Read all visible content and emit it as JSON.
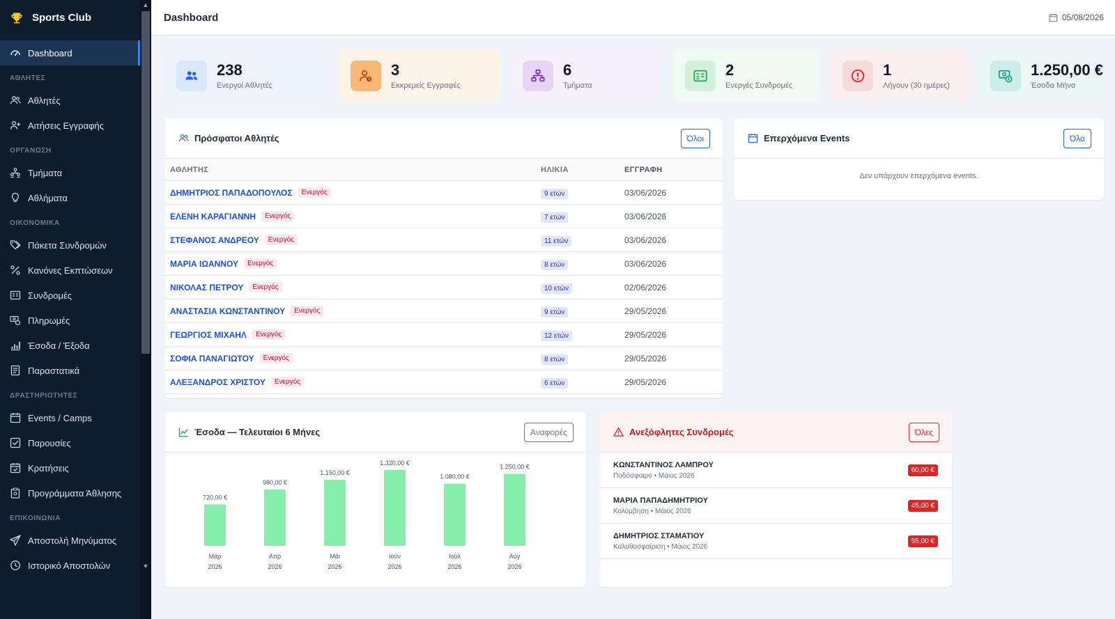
{
  "brand": {
    "name": "Sports Club",
    "icon": "trophy-icon"
  },
  "nav": {
    "dashboard": "Dashboard",
    "sections": {
      "athletes": "ΑΘΛΗΤΕΣ",
      "organization": "ΟΡΓΑΝΩΣΗ",
      "finance": "ΟΙΚΟΝΟΜΙΚΑ",
      "activities": "ΔΡΑΣΤΗΡΙΟΤΗΤΕΣ",
      "communication": "ΕΠΙΚΟΙΝΩΝΙΑ"
    },
    "items": {
      "athletes": "Αθλητές",
      "registration_requests": "Αιτήσεις Εγγραφής",
      "departments": "Τμήματα",
      "sports": "Αθλήματα",
      "subscription_packages": "Πάκετα Συνδρομών",
      "discount_rules": "Κανόνες Εκπτώσεων",
      "subscriptions": "Συνδρομές",
      "payments": "Πληρωμές",
      "income_expenses": "Έσοδα / Έξοδα",
      "receipts": "Παραστατικά",
      "events_camps": "Events / Camps",
      "attendance": "Παρουσίες",
      "bookings": "Κρατήσεις",
      "training_programs": "Προγράμματα Άθλησης",
      "send_message": "Αποστολή Μηνύματος",
      "send_history": "Ιστορικό Αποστολών"
    }
  },
  "header": {
    "title": "Dashboard",
    "date": "05/08/2026"
  },
  "stats": [
    {
      "value": "238",
      "label": "Ενεργοί Αθλητές",
      "icon": "users-icon",
      "bg": "#eef4fc",
      "icon_bg": "#dbe7fb",
      "icon_color": "#2563eb"
    },
    {
      "value": "3",
      "label": "Εκκρεμείς Εγγραφές",
      "icon": "user-clock-icon",
      "bg": "#fdf3e8",
      "icon_bg": "#f7b877",
      "icon_color": "#c2410c"
    },
    {
      "value": "6",
      "label": "Τμήματα",
      "icon": "sitemap-icon",
      "bg": "#f7f1fb",
      "icon_bg": "#e7d6f5",
      "icon_color": "#7e22ce"
    },
    {
      "value": "2",
      "label": "Ενεργές Συνδρομές",
      "icon": "id-card-icon",
      "bg": "#eefaf2",
      "icon_bg": "#d3f0dd",
      "icon_color": "#16a34a"
    },
    {
      "value": "1",
      "label": "Λήγουν (30 ημέρες)",
      "icon": "alert-circle-icon",
      "bg": "#fdf0f0",
      "icon_bg": "#f9dada",
      "icon_color": "#dc2626"
    },
    {
      "value": "1.250,00 €",
      "label": "Έσοδα Μήνα",
      "icon": "money-icon",
      "bg": "#ebf8f6",
      "icon_bg": "#cdeee8",
      "icon_color": "#0d9488"
    }
  ],
  "recent_athletes": {
    "title": "Πρόσφατοι Αθλητές",
    "button": "Όλοι",
    "columns": [
      "ΑΘΛΗΤΗΣ",
      "ΗΛΙΚΙΑ",
      "ΕΓΓΡΑΦΗ"
    ],
    "rows": [
      {
        "name": "ΔΗΜΗΤΡΙΟΣ ΠΑΠΑΔΟΠΟΥΛΟΣ",
        "status": "Ενεργός",
        "age": "9 ετών",
        "date": "03/06/2026"
      },
      {
        "name": "ΕΛΕΝΗ ΚΑΡΑΓΙΑΝΝΗ",
        "status": "Ενεργός",
        "age": "7 ετών",
        "date": "03/06/2026"
      },
      {
        "name": "ΣΤΕΦΑΝΟΣ ΑΝΔΡΕΟΥ",
        "status": "Ενεργός",
        "age": "11 ετών",
        "date": "03/06/2026"
      },
      {
        "name": "ΜΑΡΙΑ ΙΩΑΝΝΟΥ",
        "status": "Ενεργός",
        "age": "8 ετών",
        "date": "03/06/2026"
      },
      {
        "name": "ΝΙΚΟΛΑΣ ΠΕΤΡΟΥ",
        "status": "Ενεργός",
        "age": "10 ετών",
        "date": "02/06/2026"
      },
      {
        "name": "ΑΝΑΣΤΑΣΙΑ ΚΩΝΣΤΑΝΤΙΝΟΥ",
        "status": "Ενεργός",
        "age": "9 ετών",
        "date": "29/05/2026"
      },
      {
        "name": "ΓΕΩΡΓΙΟΣ ΜΙΧΑΗΛ",
        "status": "Ενεργός",
        "age": "12 ετών",
        "date": "29/05/2026"
      },
      {
        "name": "ΣΟΦΙΑ ΠΑΝΑΓΙΩΤΟΥ",
        "status": "Ενεργός",
        "age": "8 ετών",
        "date": "29/05/2026"
      },
      {
        "name": "ΑΛΕΞΑΝΔΡΟΣ ΧΡΙΣΤΟΥ",
        "status": "Ενεργός",
        "age": "6 ετών",
        "date": "29/05/2026"
      }
    ]
  },
  "events": {
    "title": "Επερχόμενα Events",
    "button": "Όλα",
    "empty": "Δεν υπάρχουν επερχόμενα events."
  },
  "chart_data": {
    "type": "bar",
    "title": "Έσοδα — Τελευταίοι 6 Μήνες",
    "button": "Αναφορές",
    "categories": [
      [
        "Μάρ",
        "2026"
      ],
      [
        "Απρ",
        "2026"
      ],
      [
        "Μάι",
        "2026"
      ],
      [
        "Ιούν",
        "2026"
      ],
      [
        "Ιούλ",
        "2026"
      ],
      [
        "Αύγ",
        "2026"
      ]
    ],
    "values": [
      720,
      980,
      1150,
      1320,
      1080,
      1250
    ],
    "value_labels": [
      "720,00 €",
      "980,00 €",
      "1.150,00 €",
      "1.320,00 €",
      "1.080,00 €",
      "1.250,00 €"
    ],
    "ylim": [
      0,
      1450
    ],
    "grid": false,
    "bar_color": "#86efac"
  },
  "overdue": {
    "title": "Ανεξόφλητες Συνδρομές",
    "button": "Όλες",
    "rows": [
      {
        "name": "ΚΩΝΣΤΑΝΤΙΝΟΣ ΛΑΜΠΡΟΥ",
        "sub": "Ποδόσφαιρο • Μάιος 2026",
        "amount": "60,00 €"
      },
      {
        "name": "ΜΑΡΙΑ ΠΑΠΑΔΗΜΗΤΡΙΟΥ",
        "sub": "Κολύμβηση • Μάιος 2026",
        "amount": "45,00 €"
      },
      {
        "name": "ΔΗΜΗΤΡΙΟΣ ΣΤΑΜΑΤΙΟΥ",
        "sub": "Καλαθοσφαίριση • Μάιος 2026",
        "amount": "55,00 €"
      }
    ]
  }
}
